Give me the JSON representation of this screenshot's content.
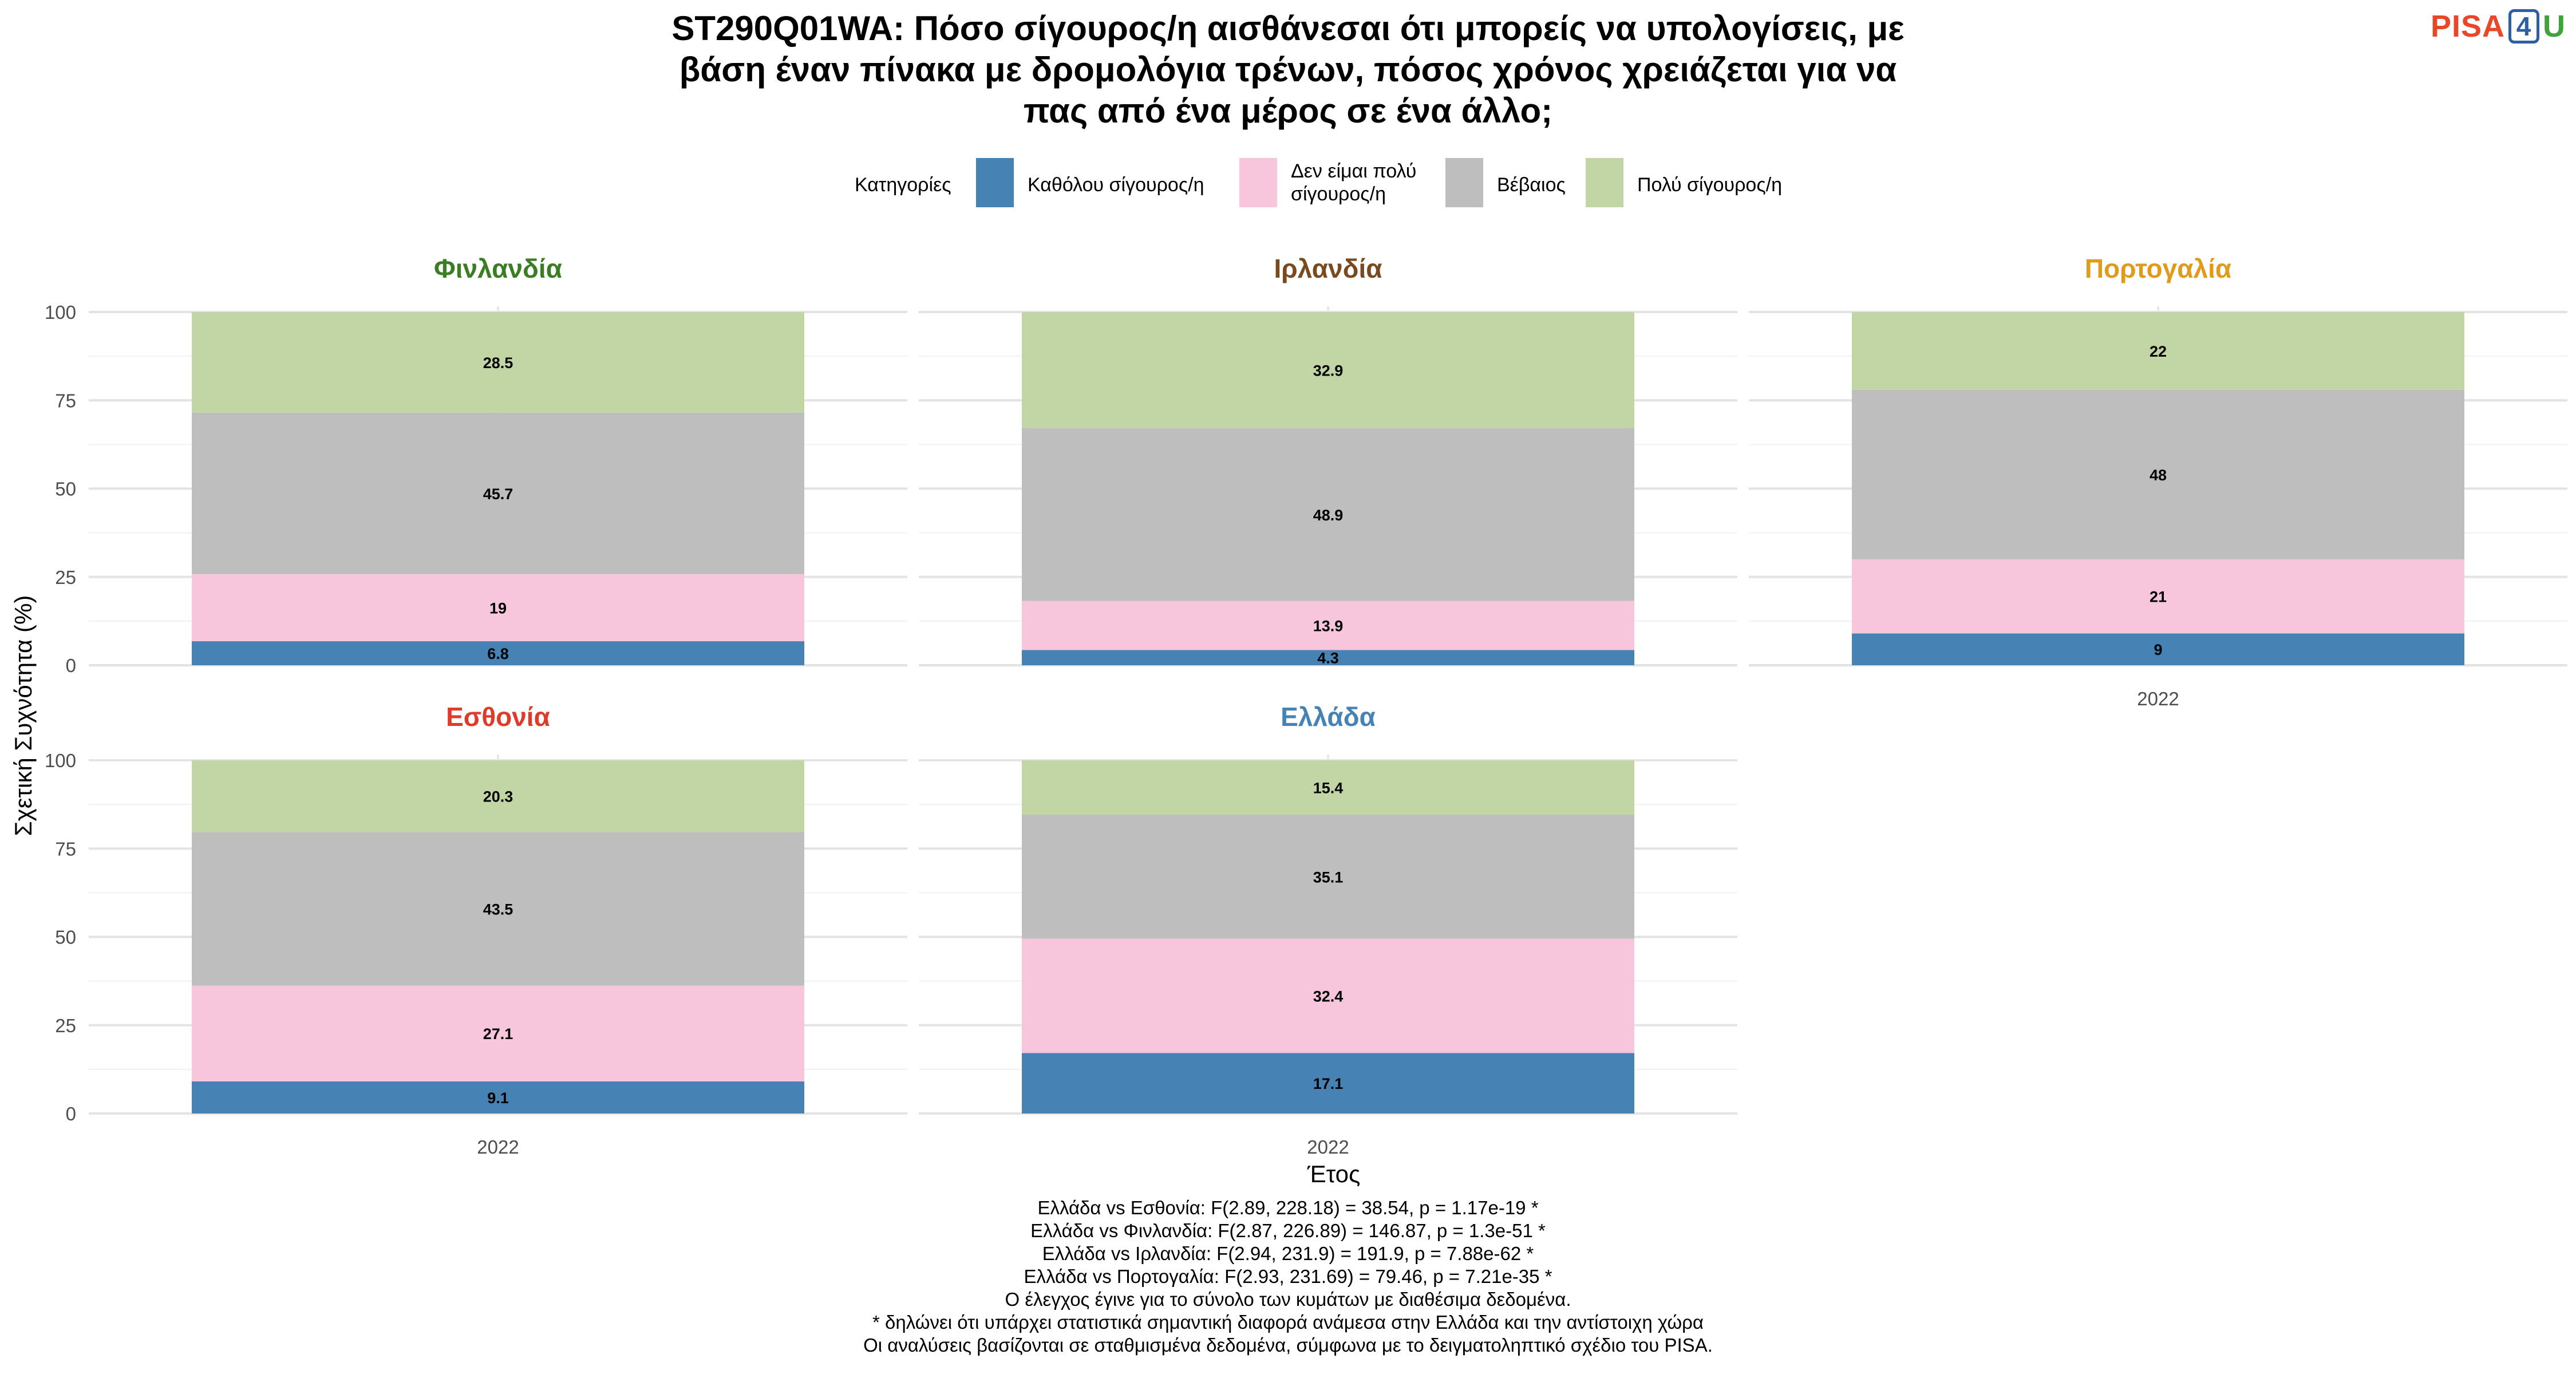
{
  "title": {
    "lines": [
      "ST290Q01WA: Πόσο σίγουρος/η αισθάνεσαι ότι μπορείς να υπολογίσεις, με",
      "βάση έναν πίνακα με δρομολόγια τρένων, πόσος χρόνος χρειάζεται για να",
      "πας από ένα μέρος σε ένα άλλο;"
    ]
  },
  "logo": {
    "pisa": "PISA",
    "four": "4",
    "u": "U"
  },
  "legend": {
    "title": "Κατηγορίες",
    "items": [
      {
        "lines": [
          "Καθόλου σίγουρος/η"
        ],
        "color": "#4682b4"
      },
      {
        "lines": [
          "Δεν είμαι πολύ",
          "σίγουρος/η"
        ],
        "color": "#f8c6dc"
      },
      {
        "lines": [
          "Βέβαιος"
        ],
        "color": "#bebebe"
      },
      {
        "lines": [
          "Πολύ σίγουρος/η"
        ],
        "color": "#c2d6a5"
      }
    ]
  },
  "chart_data": {
    "type": "bar",
    "stacked": true,
    "xlabel": "Έτος",
    "ylabel": "Σχετική Συχνότητα (%)",
    "ylim": [
      0,
      100
    ],
    "yticks": [
      0,
      25,
      50,
      75,
      100
    ],
    "grid": true,
    "legend_position": "top",
    "series_names": [
      "Καθόλου σίγουρος/η",
      "Δεν είμαι πολύ σίγουρος/η",
      "Βέβαιος",
      "Πολύ σίγουρος/η"
    ],
    "panels": [
      {
        "name": "Φινλανδία",
        "name_color": "#3a7d22",
        "categories": [
          "2022"
        ],
        "show_xtick": false,
        "values": [
          6.8,
          19,
          45.7,
          28.5
        ],
        "labels": [
          "6.8",
          "19",
          "45.7",
          "28.5"
        ]
      },
      {
        "name": "Ιρλανδία",
        "name_color": "#7a4a1e",
        "categories": [
          "2022"
        ],
        "show_xtick": false,
        "values": [
          4.3,
          13.9,
          48.9,
          32.9
        ],
        "labels": [
          "4.3",
          "13.9",
          "48.9",
          "32.9"
        ]
      },
      {
        "name": "Πορτογαλία",
        "name_color": "#e09a1c",
        "categories": [
          "2022"
        ],
        "show_xtick": true,
        "values": [
          9,
          21,
          48,
          22
        ],
        "labels": [
          "9",
          "21",
          "48",
          "22"
        ]
      },
      {
        "name": "Εσθονία",
        "name_color": "#e03a2b",
        "categories": [
          "2022"
        ],
        "show_xtick": true,
        "values": [
          9.1,
          27.1,
          43.5,
          20.3
        ],
        "labels": [
          "9.1",
          "27.1",
          "43.5",
          "20.3"
        ]
      },
      {
        "name": "Ελλάδα",
        "name_color": "#4682b4",
        "categories": [
          "2022"
        ],
        "show_xtick": true,
        "values": [
          17.1,
          32.4,
          35.1,
          15.4
        ],
        "labels": [
          "17.1",
          "32.4",
          "35.1",
          "15.4"
        ]
      }
    ]
  },
  "footer": {
    "lines": [
      "Ελλάδα vs Εσθονία: F(2.89, 228.18) = 38.54, p = 1.17e-19 *",
      "Ελλάδα vs Φινλανδία: F(2.87, 226.89) = 146.87, p = 1.3e-51 *",
      "Ελλάδα vs Ιρλανδία: F(2.94, 231.9) = 191.9, p = 7.88e-62 *",
      "Ελλάδα vs Πορτογαλία: F(2.93, 231.69) = 79.46, p = 7.21e-35 *",
      "Ο έλεγχος έγινε για το σύνολο των κυμάτων με διαθέσιμα δεδομένα.",
      "* δηλώνει ότι υπάρχει στατιστικά σημαντική διαφορά ανάμεσα στην Ελλάδα και την αντίστοιχη χώρα",
      "Οι αναλύσεις βασίζονται σε σταθμισμένα δεδομένα, σύμφωνα με το δειγματοληπτικό σχέδιο του PISA."
    ]
  }
}
